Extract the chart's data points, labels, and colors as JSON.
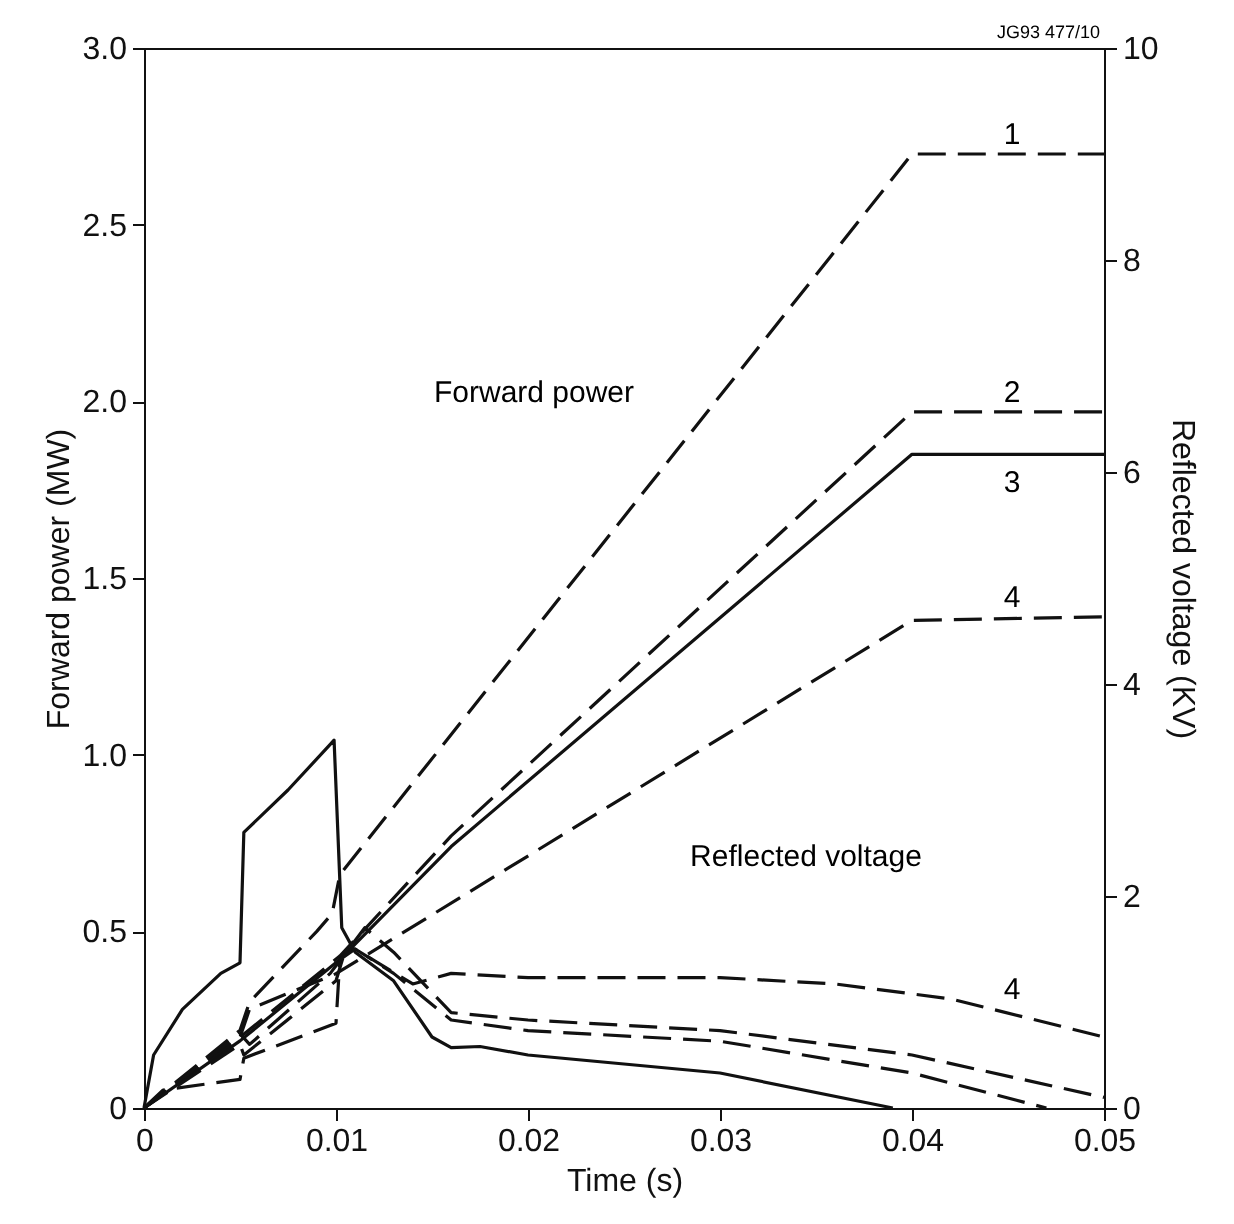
{
  "chart_data": {
    "type": "line",
    "xlabel": "Time (s)",
    "ylabel": "Forward power (MW)",
    "y2label": "Reflected voltage (KV)",
    "xlim": [
      0,
      0.05
    ],
    "xticks": [
      0,
      0.01,
      0.02,
      0.03,
      0.04,
      0.05
    ],
    "ylim": [
      0,
      3
    ],
    "yticks": [
      0,
      0.5,
      {
        "value": 1,
        "label": "1.0"
      },
      1.5,
      {
        "value": 2,
        "label": "2.0"
      },
      2.5,
      {
        "value": 3,
        "label": "3.0"
      }
    ],
    "y2lim": [
      0,
      10
    ],
    "y2ticks": [
      0,
      2,
      4,
      6,
      8,
      10
    ],
    "grid": false,
    "legend": false,
    "marker": "none",
    "annotations": [
      "JG93 477/10",
      "Forward power",
      "Reflected voltage"
    ],
    "series": [
      {
        "name": "1",
        "color": "#111111",
        "line_style": "dashed",
        "x": [
          0,
          0.005,
          0.0055,
          0.009,
          0.0098,
          0.0102,
          0.04,
          0.05
        ],
        "values": [
          0,
          0.22,
          0.3,
          0.5,
          0.55,
          0.66,
          2.7,
          2.7
        ]
      },
      {
        "name": "2",
        "color": "#111111",
        "line_style": "dashed",
        "x": [
          0,
          0.005,
          0.0102,
          0.016,
          0.04,
          0.05
        ],
        "values": [
          0,
          0.2,
          0.43,
          0.77,
          1.97,
          1.97
        ]
      },
      {
        "name": "3",
        "color": "#111111",
        "line_style": "solid",
        "x": [
          0,
          0.005,
          0.0102,
          0.016,
          0.04,
          0.05
        ],
        "values": [
          0,
          0.19,
          0.42,
          0.74,
          1.85,
          1.85
        ]
      },
      {
        "name": "4",
        "color": "#111111",
        "line_style": "dashed",
        "x": [
          0,
          0.005,
          0.0055,
          0.01,
          0.04,
          0.05
        ],
        "values": [
          0,
          0.2,
          0.28,
          0.38,
          1.38,
          1.39
        ]
      },
      {
        "color": "#111111",
        "line_style": "dashed",
        "axis": "y2",
        "x": [
          0,
          0.005,
          0.0055,
          0.0097,
          0.0115,
          0.013,
          0.016,
          0.02,
          0.03,
          0.04,
          0.05
        ],
        "values": [
          0,
          0.7,
          0.6,
          1.27,
          1.7,
          1.47,
          0.9,
          0.83,
          0.73,
          0.5,
          0.1
        ]
      },
      {
        "color": "#111111",
        "line_style": "dashed",
        "axis": "y2",
        "x": [
          0,
          0.005,
          0.0052,
          0.01,
          0.0105,
          0.011,
          0.013,
          0.016,
          0.02,
          0.03,
          0.04,
          0.047
        ],
        "values": [
          0,
          0.6,
          0.5,
          1.2,
          1.5,
          1.5,
          1.27,
          0.83,
          0.73,
          0.63,
          0.33,
          0
        ]
      },
      {
        "color": "#111111",
        "line_style": "solid",
        "axis": "y2",
        "x": [
          0,
          0.0005,
          0.002,
          0.004,
          0.005,
          0.0052,
          0.0075,
          0.0097,
          0.0099,
          0.0103,
          0.011,
          0.013,
          0.015,
          0.016,
          0.0175,
          0.02,
          0.03,
          0.039
        ],
        "values": [
          0,
          0.5,
          0.93,
          1.27,
          1.37,
          2.6,
          3.0,
          3.43,
          3.47,
          1.7,
          1.47,
          1.2,
          0.67,
          0.57,
          0.58,
          0.5,
          0.33,
          0
        ]
      },
      {
        "name": "4",
        "color": "#111111",
        "line_style": "dashed",
        "axis": "y2",
        "x": [
          0,
          0.001,
          0.005,
          0.0052,
          0.01,
          0.0102,
          0.011,
          0.014,
          0.016,
          0.02,
          0.03,
          0.036,
          0.042,
          0.05
        ],
        "values": [
          0,
          0.17,
          0.27,
          0.47,
          0.8,
          1.4,
          1.5,
          1.17,
          1.27,
          1.23,
          1.23,
          1.17,
          1.03,
          0.67
        ]
      }
    ]
  }
}
